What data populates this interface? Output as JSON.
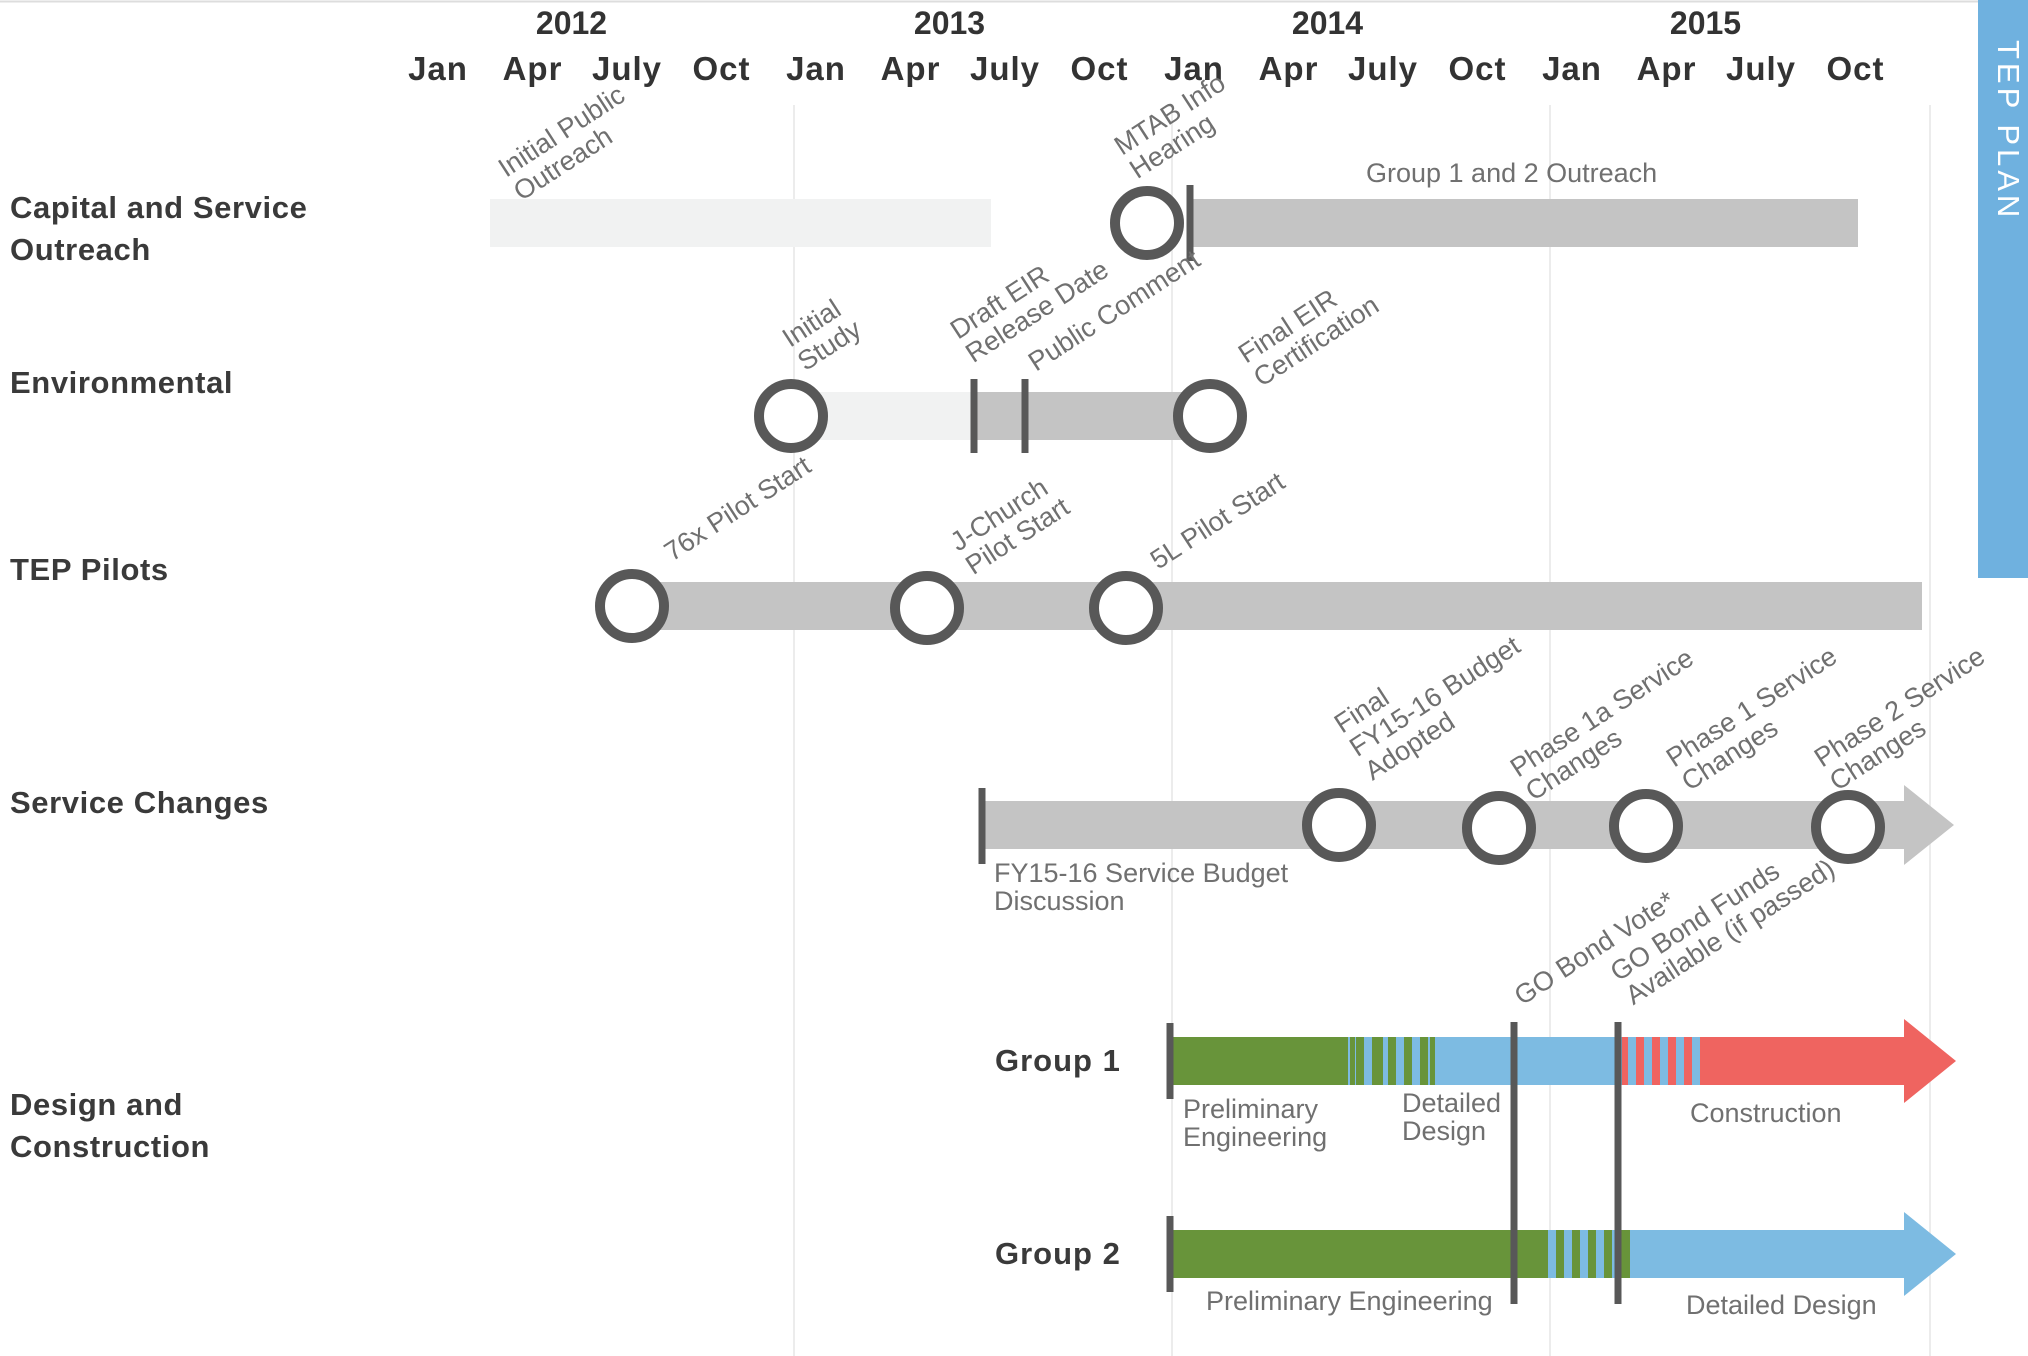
{
  "chart_data": {
    "type": "timeline",
    "x_axis": {
      "years": [
        "2012",
        "2013",
        "2014",
        "2015"
      ],
      "months": [
        "Jan",
        "Apr",
        "July",
        "Oct"
      ],
      "range": [
        "2012-01",
        "2015-12"
      ]
    },
    "side_tab": "TEP PLAN",
    "rows": [
      {
        "id": "capital",
        "label": [
          "Capital and Service",
          "Outreach"
        ],
        "bars": [
          {
            "start": "2012-01",
            "end": "2013-07",
            "style": "light"
          },
          {
            "start": "2013-07",
            "end": "2015-12",
            "style": "mid"
          }
        ],
        "milestones": [
          {
            "date": "2012-04",
            "kind": "text",
            "label": [
              "Initial Public",
              "Outreach"
            ]
          },
          {
            "date": "2013-07",
            "kind": "circle",
            "label": [
              "MTAB Info",
              "Hearing"
            ]
          },
          {
            "date": "2013-08",
            "kind": "tick"
          }
        ],
        "notes": [
          {
            "date": "2014-06",
            "text": "Group 1 and 2  Outreach"
          }
        ]
      },
      {
        "id": "environmental",
        "label": [
          "Environmental"
        ],
        "bars": [
          {
            "start": "2013-01",
            "end": "2013-05",
            "style": "light"
          },
          {
            "start": "2013-05",
            "end": "2013-09",
            "style": "mid"
          }
        ],
        "milestones": [
          {
            "date": "2013-01",
            "kind": "circle",
            "label": [
              "Initial",
              "Study"
            ]
          },
          {
            "date": "2013-05",
            "kind": "tick",
            "label": [
              "Draft EIR",
              "Release Date"
            ]
          },
          {
            "date": "2013-06",
            "kind": "tick",
            "label": [
              "Public Comment"
            ]
          },
          {
            "date": "2013-09",
            "kind": "circle",
            "label": [
              "Final EIR",
              "Certification"
            ]
          }
        ]
      },
      {
        "id": "pilots",
        "label": [
          "TEP Pilots"
        ],
        "bars": [
          {
            "start": "2012-05",
            "end": "2016-01",
            "style": "mid"
          }
        ],
        "milestones": [
          {
            "date": "2012-05",
            "kind": "circle",
            "label": [
              "76x Pilot Start"
            ]
          },
          {
            "date": "2013-02",
            "kind": "circle",
            "label": [
              "J-Church",
              "Pilot Start"
            ]
          },
          {
            "date": "2013-08",
            "kind": "circle",
            "label": [
              "5L Pilot Start"
            ]
          }
        ]
      },
      {
        "id": "service",
        "label": [
          "Service Changes"
        ],
        "bars": [
          {
            "start": "2013-06",
            "end": "2016-01",
            "style": "arrow"
          }
        ],
        "milestones": [
          {
            "date": "2013-06",
            "kind": "tick"
          },
          {
            "date": "2014-06",
            "kind": "circle",
            "label": [
              "Final",
              "FY15-16 Budget",
              "Adopted"
            ]
          },
          {
            "date": "2014-10",
            "kind": "circle",
            "label": [
              "Phase 1a Service",
              "Changes"
            ]
          },
          {
            "date": "2015-02",
            "kind": "circle",
            "label": [
              "Phase 1 Service",
              "Changes"
            ]
          },
          {
            "date": "2015-08",
            "kind": "circle",
            "label": [
              "Phase 2 Service",
              "Changes"
            ]
          }
        ],
        "notes": [
          {
            "date": "2013-06",
            "text": [
              "FY15-16 Service Budget",
              "Discussion"
            ]
          }
        ]
      },
      {
        "id": "design",
        "label": [
          "Design and",
          "Construction"
        ],
        "groups": [
          {
            "label": "Group 1",
            "phases": [
              {
                "name": [
                  "Preliminary",
                  "Engineering"
                ],
                "start": "2014-01",
                "end": "2014-05",
                "color": "#68943a"
              },
              {
                "name": [
                  "Detailed",
                  "Design"
                ],
                "start": "2014-05",
                "end": "2015-01",
                "color": "#7dbbe2"
              },
              {
                "name": [
                  "Construction"
                ],
                "start": "2015-01",
                "end": "2016-01",
                "color": "#ef6460"
              }
            ]
          },
          {
            "label": "Group 2",
            "phases": [
              {
                "name": [
                  "Preliminary Engineering"
                ],
                "start": "2014-01",
                "end": "2014-12",
                "color": "#68943a"
              },
              {
                "name": [
                  "Detailed Design"
                ],
                "start": "2014-12",
                "end": "2016-01",
                "color": "#7dbbe2"
              }
            ]
          }
        ],
        "milestones": [
          {
            "date": "2014-11",
            "kind": "line",
            "label": [
              "GO Bond Vote*"
            ]
          },
          {
            "date": "2014-12",
            "kind": "line",
            "label": [
              "GO Bond Funds",
              "Available (if passed)"
            ]
          }
        ]
      }
    ],
    "colors": {
      "bar_light": "#f1f2f2",
      "bar_mid": "#c4c4c4",
      "milestone": "#585858",
      "grid": "#e6e6e6",
      "side_tab": "#6fb1df",
      "green": "#68943a",
      "blue": "#7dbbe2",
      "red": "#ef6460"
    }
  }
}
